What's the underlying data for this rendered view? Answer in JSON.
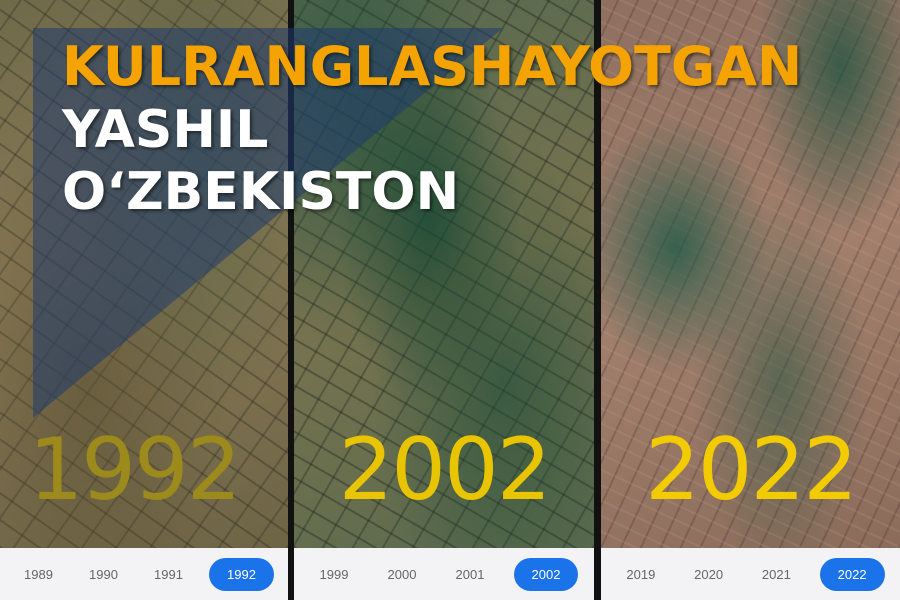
{
  "headline": {
    "line1": "KULRANGLASHAYOTGAN",
    "line2": "YASHIL",
    "line3": "O‘ZBEKISTON"
  },
  "panels": [
    {
      "year": "1992",
      "timeline": [
        "1989",
        "1990",
        "1991",
        "1992"
      ],
      "active": "1992"
    },
    {
      "year": "2002",
      "timeline": [
        "1999",
        "2000",
        "2001",
        "2002"
      ],
      "active": "2002"
    },
    {
      "year": "2022",
      "timeline": [
        "2019",
        "2020",
        "2021",
        "2022"
      ],
      "active": "2022"
    }
  ],
  "colors": {
    "headline_accent": "#f4a300",
    "headline_white": "#ffffff",
    "overlay_blue": "#1f3b6e",
    "timeline_active": "#1a73e8"
  }
}
